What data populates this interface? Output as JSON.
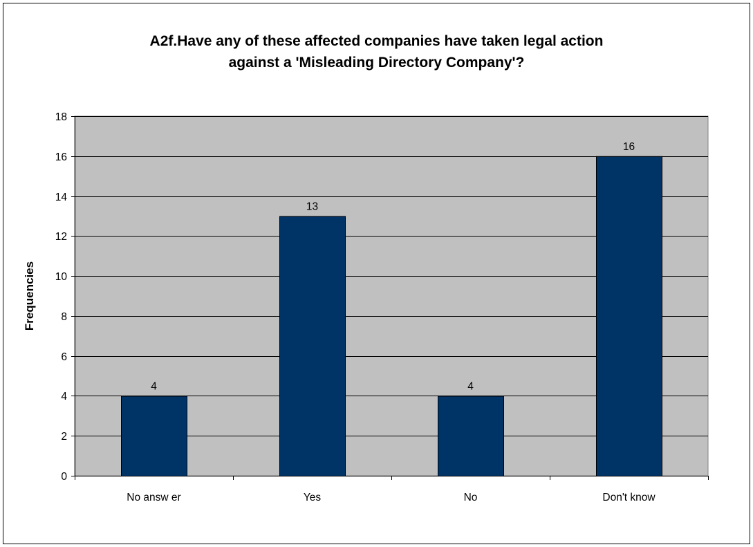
{
  "chart_data": {
    "type": "bar",
    "title_lines": [
      "A2f.Have any of these affected companies have taken legal action",
      "against a 'Misleading Directory Company'?"
    ],
    "categories": [
      "No answ er",
      "Yes",
      "No",
      "Don't know"
    ],
    "values": [
      4,
      13,
      4,
      16
    ],
    "data_labels": [
      "4",
      "13",
      "4",
      "16"
    ],
    "xlabel": "",
    "ylabel": "Frequencies",
    "ylim": [
      0,
      18
    ],
    "yticks": [
      0,
      2,
      4,
      6,
      8,
      10,
      12,
      14,
      16,
      18
    ],
    "ytick_labels": [
      "0",
      "2",
      "4",
      "6",
      "8",
      "10",
      "12",
      "14",
      "16",
      "18"
    ],
    "grid": true,
    "legend": "none",
    "colors": {
      "bar_fill": "#003366",
      "plot_background": "#C0C0C0",
      "gridline": "#000000"
    }
  }
}
